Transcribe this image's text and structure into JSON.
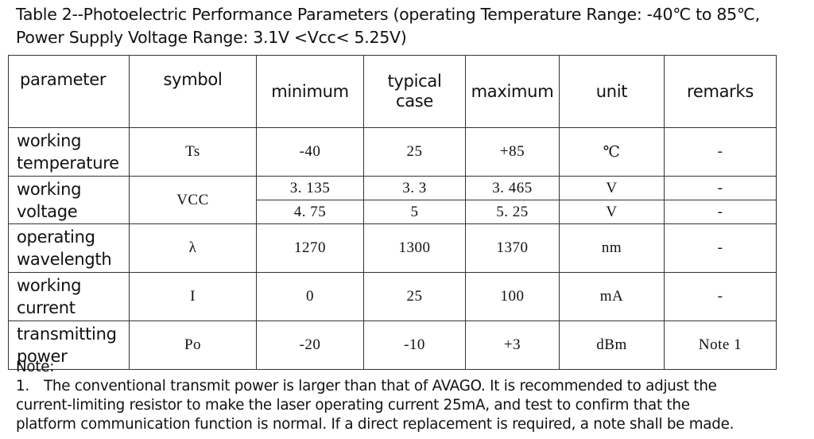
{
  "caption": {
    "line1": "Table 2--Photoelectric Performance Parameters (operating Temperature Range: -40℃ to 85℃,",
    "line2": "Power Supply Voltage Range: 3.1V <Vcc< 5.25V)"
  },
  "table": {
    "headers": {
      "parameter": "parameter",
      "symbol": "symbol",
      "minimum": "minimum",
      "typical_line1": "typical",
      "typical_line2": "case",
      "maximum": "maximum",
      "unit": "unit",
      "remarks": "remarks"
    },
    "rows": [
      {
        "param_line1": "working",
        "param_line2": "temperature",
        "symbol": "Ts",
        "minimum": "-40",
        "typical": "25",
        "maximum": "+85",
        "unit": "℃",
        "remarks": "-"
      },
      {
        "param_line1": "working",
        "param_line2": "voltage",
        "symbol": "VCC",
        "sub": [
          {
            "minimum": "3. 135",
            "typical": "3. 3",
            "maximum": "3. 465",
            "unit": "V",
            "remarks": "-"
          },
          {
            "minimum": "4. 75",
            "typical": "5",
            "maximum": "5. 25",
            "unit": "V",
            "remarks": "-"
          }
        ]
      },
      {
        "param_line1": "operating",
        "param_line2": "wavelength",
        "symbol": "λ",
        "minimum": "1270",
        "typical": "1300",
        "maximum": "1370",
        "unit": "nm",
        "remarks": "-"
      },
      {
        "param_line1": "working",
        "param_line2": "current",
        "symbol": "I",
        "minimum": "0",
        "typical": "25",
        "maximum": "100",
        "unit": "mA",
        "remarks": "-"
      },
      {
        "param_line1": "transmitting",
        "param_line2": "power",
        "symbol": "Po",
        "minimum": "-20",
        "typical": "-10",
        "maximum": "+3",
        "unit": "dBm",
        "remarks": "Note 1"
      }
    ]
  },
  "notes": {
    "heading": "Note:",
    "item_number": "1.",
    "line1": "The conventional transmit power is larger than that of AVAGO. It is recommended to adjust the",
    "line2": "current-limiting resistor to make the laser operating current 25mA, and test to confirm that the",
    "line3": "platform communication function is normal. If a direct replacement is required, a note shall be made."
  }
}
